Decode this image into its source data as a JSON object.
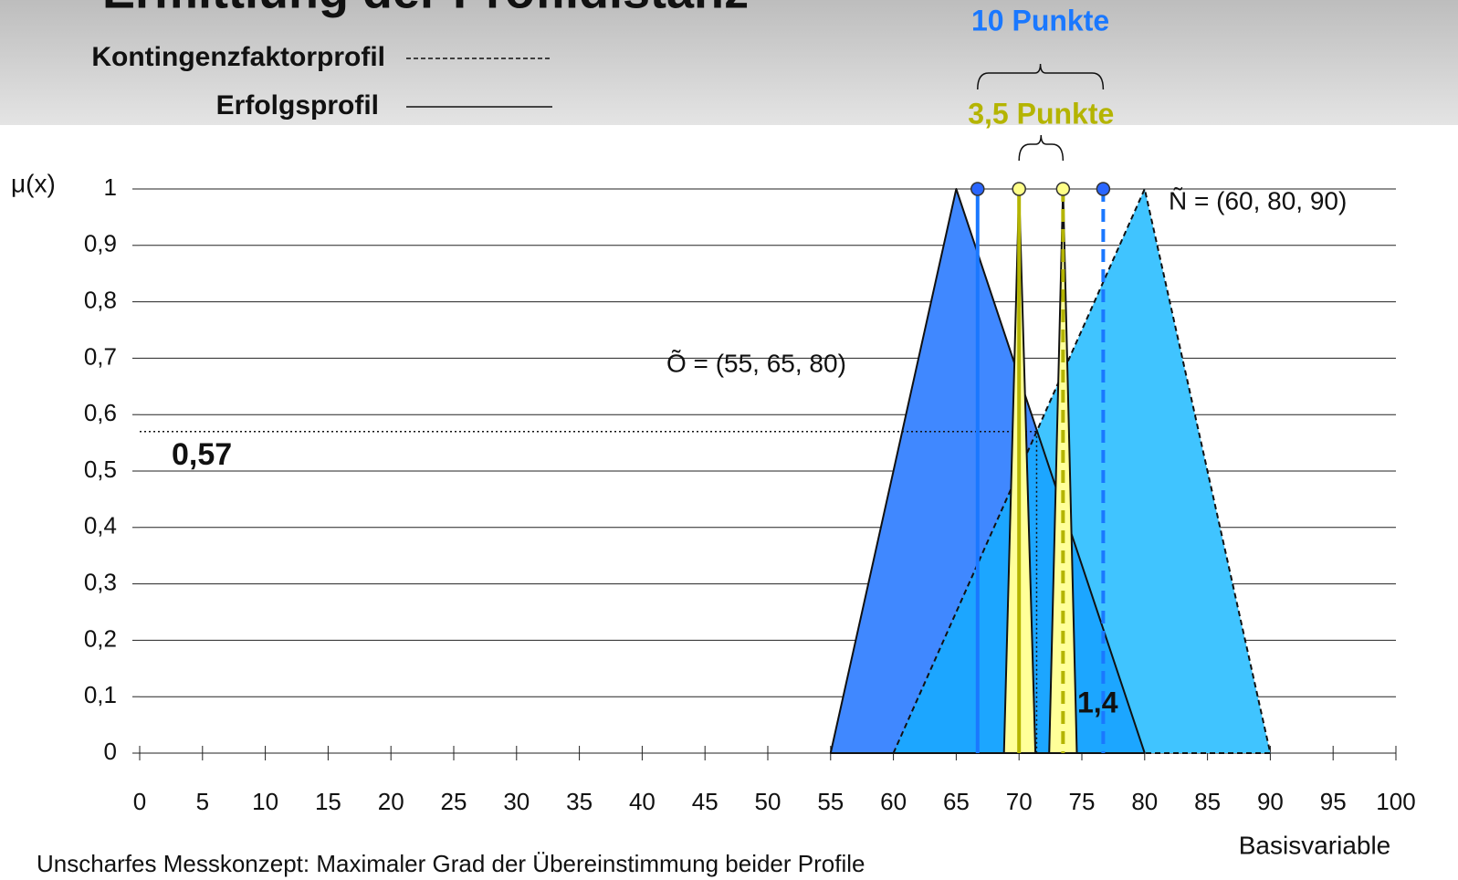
{
  "title": "Ermittlung der Profildistanz",
  "legend": [
    {
      "label": "Kontingenzfaktorprofil",
      "dash": true
    },
    {
      "label": "Erfolgsprofil",
      "dash": false
    }
  ],
  "caption": "Unscharfes Messkonzept: Maximaler Grad der Übereinstimmung beider Profile",
  "chart_data": {
    "type": "fuzzy",
    "y_label": "μ(x)",
    "x_label": "Basisvariable",
    "xlim": [
      0,
      100
    ],
    "xticks": [
      0,
      5,
      10,
      15,
      20,
      25,
      30,
      35,
      40,
      45,
      50,
      55,
      60,
      65,
      70,
      75,
      80,
      85,
      90,
      95,
      100
    ],
    "ylim": [
      0,
      1
    ],
    "yticks": [
      0,
      {
        "value": 0.1,
        "label": "0,1"
      },
      {
        "value": 0.2,
        "label": "0,2"
      },
      {
        "value": 0.3,
        "label": "0,3"
      },
      {
        "value": 0.4,
        "label": "0,4"
      },
      {
        "value": 0.5,
        "label": "0,5"
      },
      {
        "value": 0.6,
        "label": "0,6"
      },
      {
        "value": 0.7,
        "label": "0,7"
      },
      {
        "value": 0.8,
        "label": "0,8"
      },
      {
        "value": 0.9,
        "label": "0,9"
      },
      1
    ],
    "grid": true,
    "series": [
      {
        "name": "Ñ = (60, 80, 90)",
        "color": "#40c4ff",
        "dash": true,
        "x": [
          60,
          80,
          90
        ],
        "y": [
          0,
          1,
          0
        ]
      },
      {
        "name": "Õ = (55, 65, 80)",
        "color": "#4088ff",
        "dash": false,
        "x": [
          55,
          65,
          80
        ],
        "y": [
          0,
          1,
          0
        ]
      },
      {
        "color": "#ffff99",
        "dash": false,
        "x": [
          68.8,
          70,
          71.3
        ],
        "y": [
          0,
          1,
          0
        ]
      },
      {
        "color": "#ffff99",
        "dash": false,
        "x": [
          72.4,
          73.5,
          74.6
        ],
        "y": [
          0,
          1,
          0
        ]
      }
    ],
    "overlap_color": "#1ca6ff",
    "distances": [
      {
        "label": "10 Punkte",
        "color": "#1a78ff",
        "x": [
          66.7,
          76.7
        ],
        "y": 1
      },
      {
        "label": "3,5 Punkte",
        "color": "#b4b400",
        "x": [
          70,
          73.5
        ],
        "y": 1
      }
    ],
    "intersection": {
      "x": 71.4,
      "y": 0.57,
      "label": "0,57"
    },
    "annotation": "1,4"
  }
}
